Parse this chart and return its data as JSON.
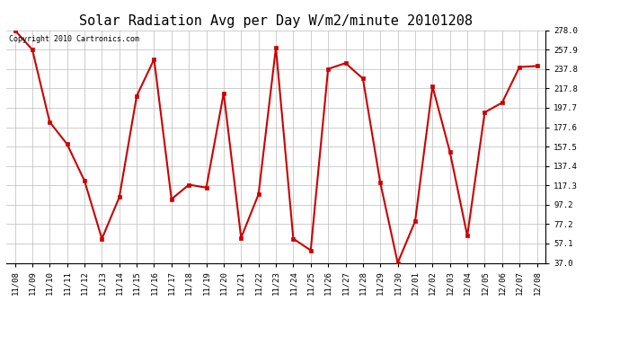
{
  "title": "Solar Radiation Avg per Day W/m2/minute 20101208",
  "copyright": "Copyright 2010 Cartronics.com",
  "labels": [
    "11/08",
    "11/09",
    "11/10",
    "11/11",
    "11/12",
    "11/13",
    "11/14",
    "11/15",
    "11/16",
    "11/17",
    "11/18",
    "11/19",
    "11/20",
    "11/21",
    "11/22",
    "11/23",
    "11/24",
    "11/25",
    "11/26",
    "11/27",
    "11/28",
    "11/29",
    "11/30",
    "12/01",
    "12/02",
    "12/03",
    "12/04",
    "12/05",
    "12/06",
    "12/07",
    "12/08"
  ],
  "values": [
    278.0,
    258.0,
    183.0,
    160.0,
    122.0,
    62.0,
    105.0,
    210.0,
    248.0,
    103.0,
    118.0,
    115.0,
    213.0,
    63.0,
    108.0,
    260.0,
    62.0,
    50.0,
    238.0,
    244.0,
    228.0,
    120.0,
    37.0,
    80.0,
    220.0,
    152.0,
    65.0,
    193.0,
    203.0,
    240.0,
    241.0
  ],
  "line_color": "#cc0000",
  "marker_color": "#cc0000",
  "marker_size": 3,
  "line_width": 1.5,
  "bg_color": "#ffffff",
  "grid_color": "#bbbbbb",
  "yticks": [
    37.0,
    57.1,
    77.2,
    97.2,
    117.3,
    137.4,
    157.5,
    177.6,
    197.7,
    217.8,
    237.8,
    257.9,
    278.0
  ],
  "ylim": [
    37.0,
    278.0
  ],
  "title_fontsize": 11,
  "tick_fontsize": 6.5,
  "copyright_fontsize": 6
}
